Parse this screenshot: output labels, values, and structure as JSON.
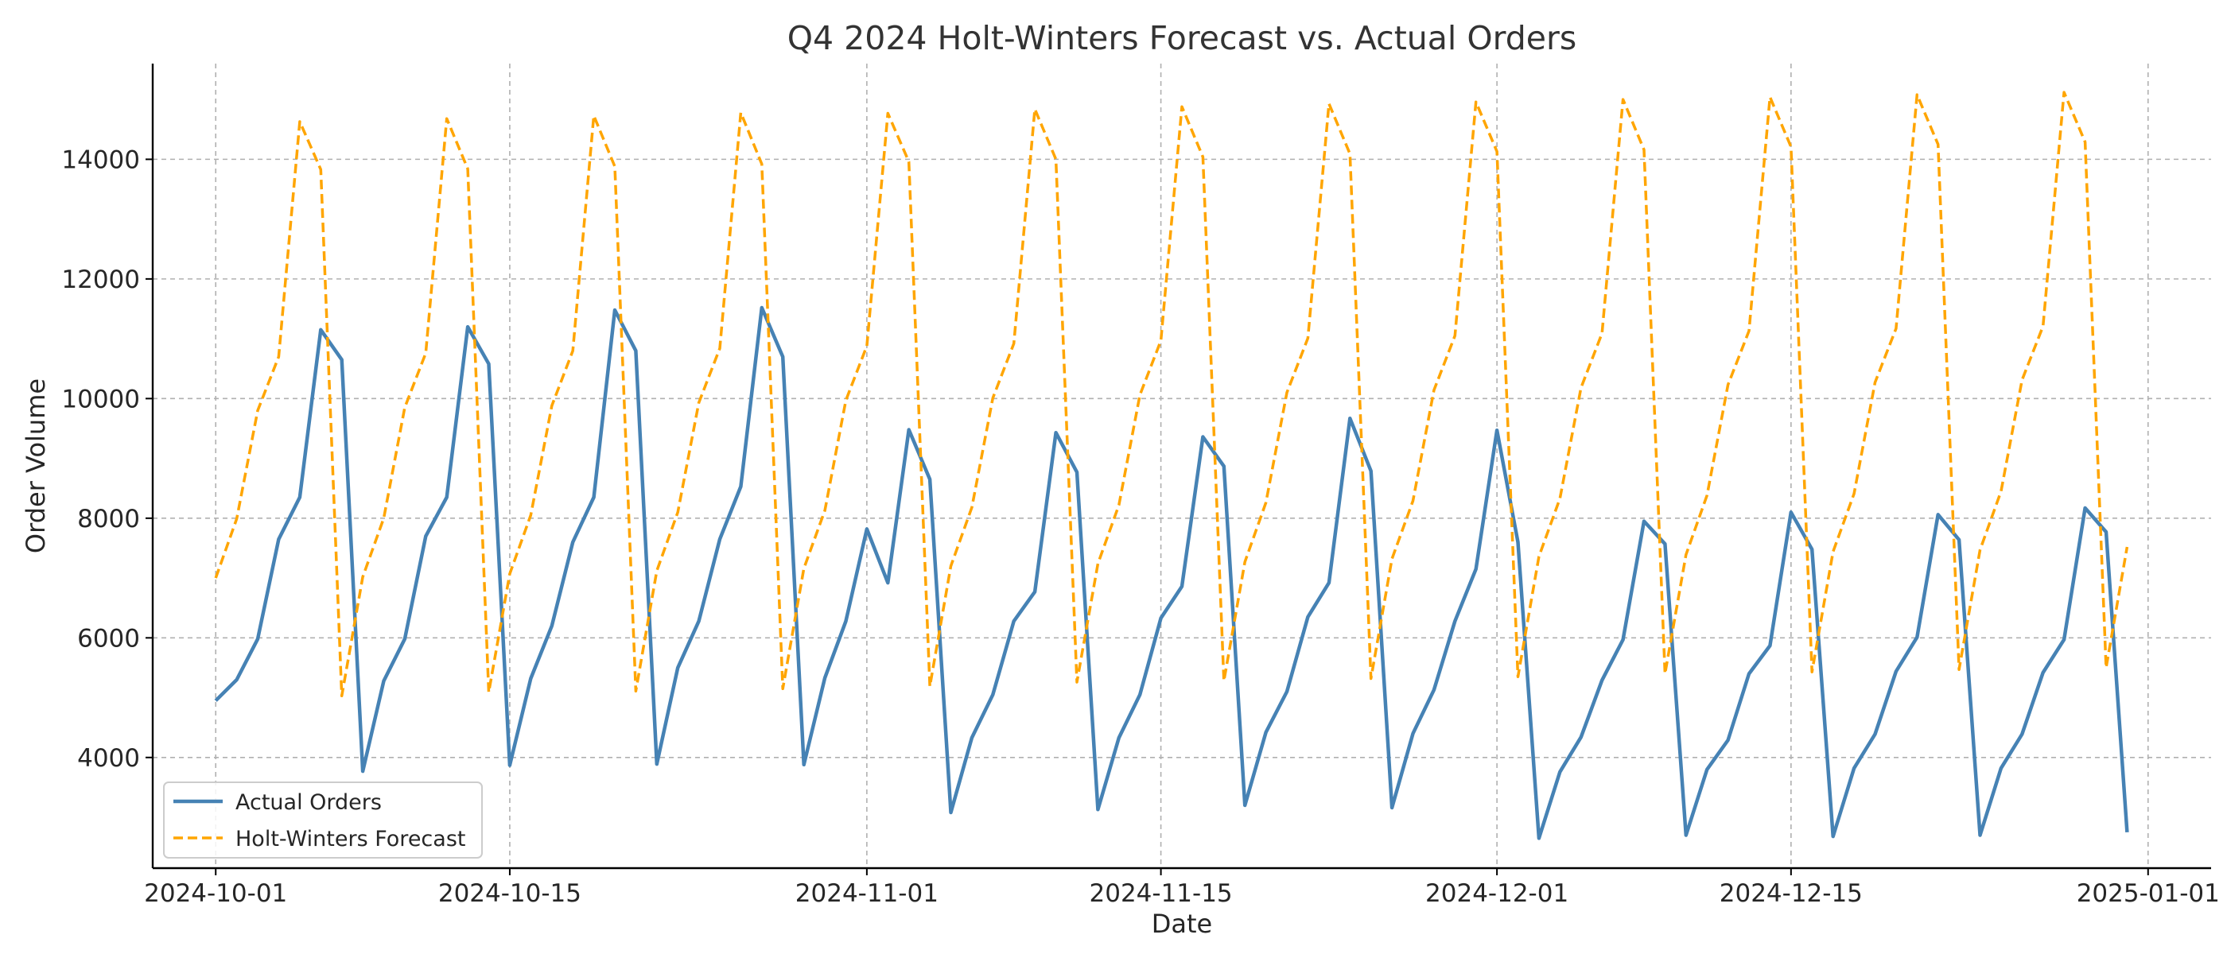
{
  "chart_data": {
    "type": "line",
    "title": "Q4 2024 Holt-Winters Forecast vs. Actual Orders",
    "xlabel": "Date",
    "ylabel": "Order Volume",
    "x_start": "2024-10-01",
    "x_end": "2024-12-31",
    "xlim": [
      "2024-09-28",
      "2025-01-04"
    ],
    "ylim": [
      2150,
      15600
    ],
    "xticks": [
      "2024-10-01",
      "2024-10-15",
      "2024-11-01",
      "2024-11-15",
      "2024-12-01",
      "2024-12-15",
      "2025-01-01"
    ],
    "yticks": [
      4000,
      6000,
      8000,
      10000,
      12000,
      14000
    ],
    "grid": true,
    "legend_position": "lower-left",
    "series": [
      {
        "name": "Actual Orders",
        "color": "#4682b4",
        "style": "solid",
        "values": [
          4950,
          5300,
          5980,
          7650,
          8350,
          11150,
          10650,
          3770,
          5280,
          5980,
          7700,
          8350,
          11200,
          10580,
          3870,
          5320,
          6200,
          7600,
          8350,
          11480,
          10800,
          3890,
          5500,
          6280,
          7650,
          8530,
          11520,
          10700,
          3880,
          5330,
          6280,
          7820,
          6920,
          9480,
          8650,
          3080,
          4330,
          5050,
          6280,
          6770,
          9430,
          8770,
          3130,
          4330,
          5050,
          6330,
          6860,
          9360,
          8870,
          3200,
          4420,
          5100,
          6350,
          6920,
          9670,
          8790,
          3160,
          4400,
          5130,
          6280,
          7150,
          9470,
          7600,
          2650,
          3760,
          4340,
          5290,
          5970,
          7950,
          7570,
          2700,
          3800,
          4290,
          5400,
          5870,
          8100,
          7480,
          2680,
          3820,
          4390,
          5440,
          6010,
          8060,
          7640,
          2700,
          3820,
          4390,
          5420,
          5970,
          8170,
          7770,
          2750
        ]
      },
      {
        "name": "Holt-Winters Forecast",
        "color": "#ffa500",
        "style": "dashed",
        "values": [
          7000,
          7990,
          9800,
          10700,
          14630,
          13830,
          5030,
          7020,
          8000,
          9850,
          10760,
          14680,
          13840,
          5090,
          7070,
          8050,
          9880,
          10800,
          14730,
          13880,
          5110,
          7120,
          8100,
          9930,
          10840,
          14780,
          13920,
          5150,
          7160,
          8130,
          9970,
          10880,
          14770,
          13960,
          5190,
          7200,
          8180,
          10010,
          10920,
          14840,
          14000,
          5260,
          7240,
          8220,
          10060,
          10970,
          14880,
          14040,
          5280,
          7270,
          8260,
          10100,
          11010,
          14930,
          14090,
          5320,
          7320,
          8290,
          10140,
          11050,
          14960,
          14130,
          5350,
          7360,
          8330,
          10180,
          11090,
          15000,
          14160,
          5400,
          7390,
          8380,
          10230,
          11130,
          15040,
          14210,
          5430,
          7440,
          8410,
          10270,
          11170,
          15080,
          14250,
          5470,
          7470,
          8450,
          10310,
          11210,
          15120,
          14290,
          5500,
          7520
        ]
      }
    ]
  }
}
